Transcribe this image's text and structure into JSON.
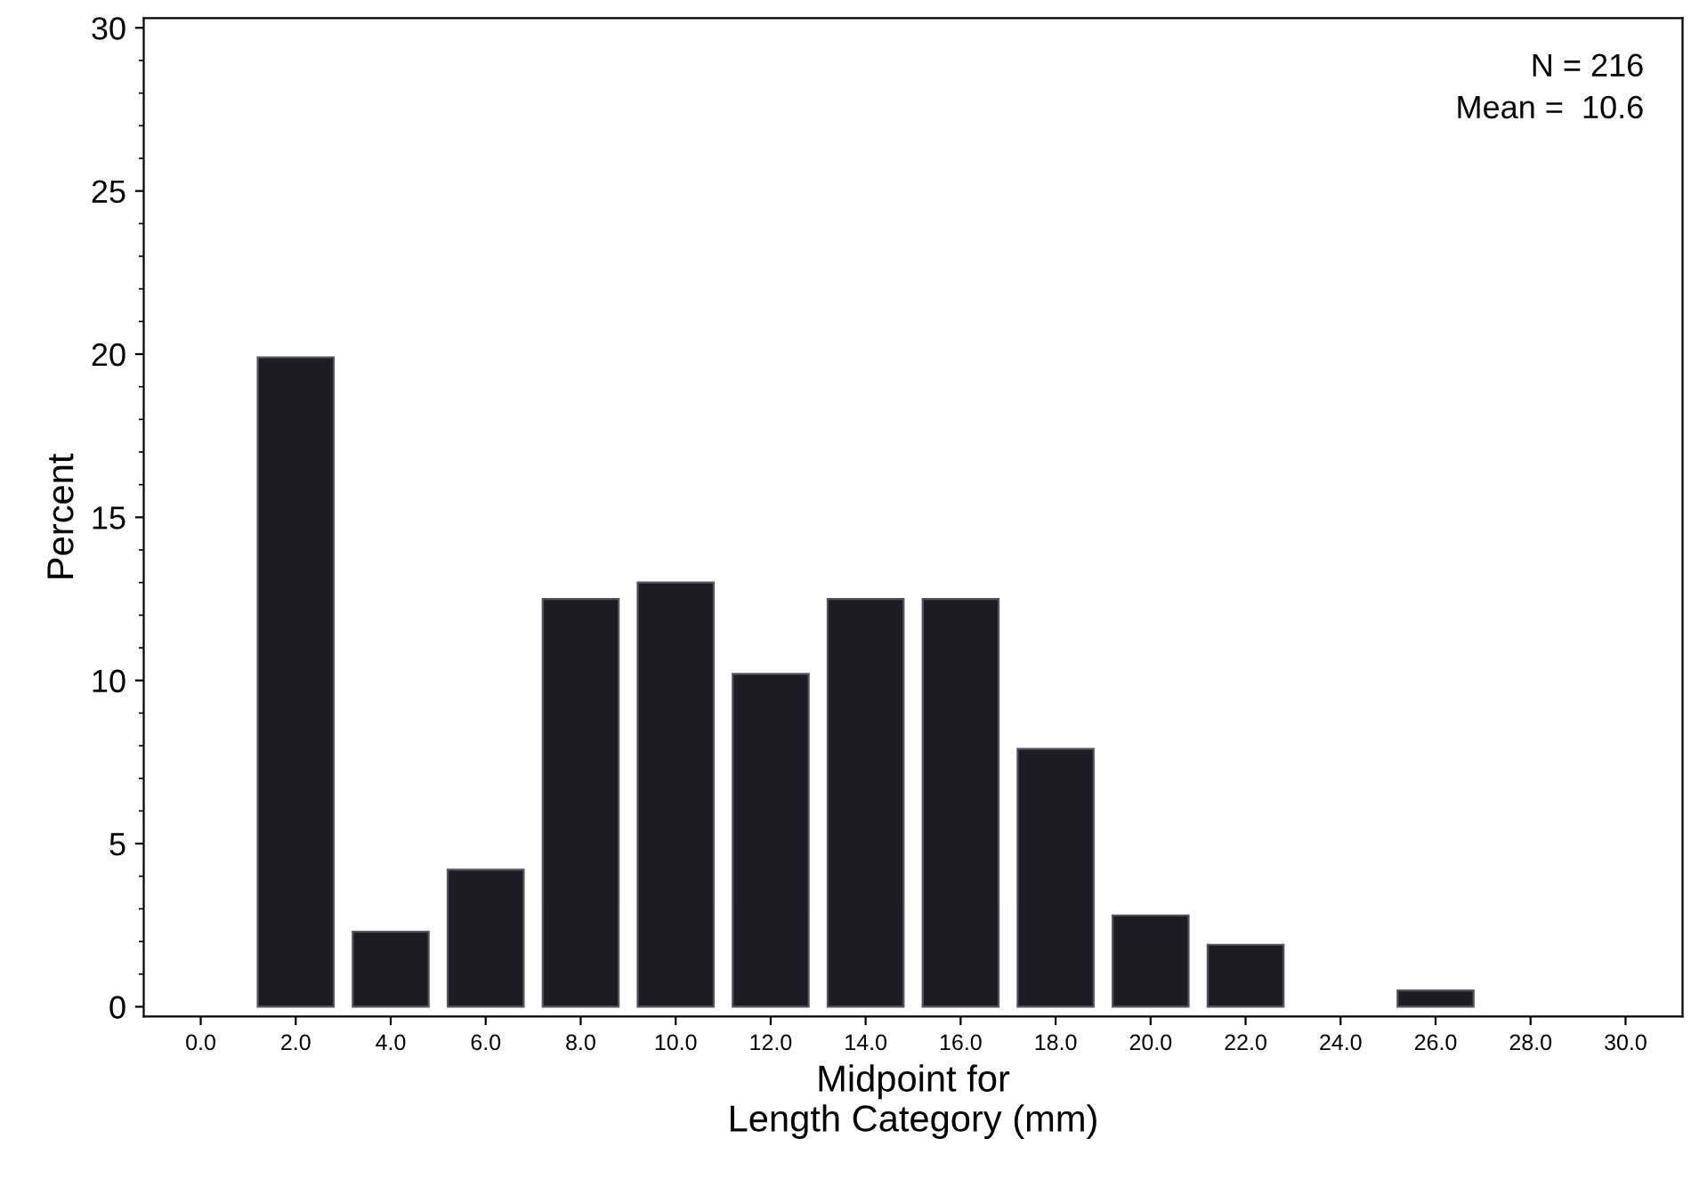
{
  "chart_data": {
    "type": "bar",
    "xlabel": "Midpoint for\nLength Category (mm)",
    "ylabel": "Percent",
    "categories": [
      "0.0",
      "2.0",
      "4.0",
      "6.0",
      "8.0",
      "10.0",
      "12.0",
      "14.0",
      "16.0",
      "18.0",
      "20.0",
      "22.0",
      "24.0",
      "26.0",
      "28.0",
      "30.0"
    ],
    "values": [
      0,
      19.9,
      2.3,
      4.2,
      12.5,
      13.0,
      10.2,
      12.5,
      12.5,
      7.9,
      2.8,
      1.9,
      0,
      0.5,
      0,
      0
    ],
    "color": "#1c1c22",
    "ylim": [
      -0.3,
      30.3
    ],
    "yticks": [
      0,
      5,
      10,
      15,
      20,
      25,
      30
    ],
    "annotations": [
      "N = 216",
      "Mean =  10.6"
    ],
    "grid": false,
    "legend": false
  }
}
